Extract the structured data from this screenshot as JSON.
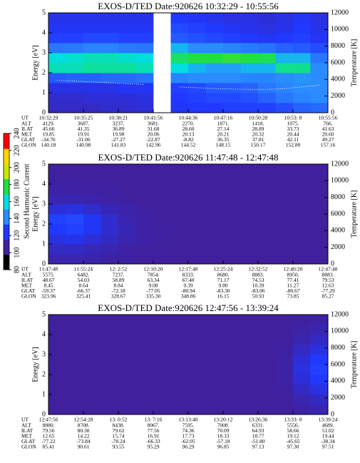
{
  "colorbar": {
    "label": "Second Harmonic Current",
    "zlim": [
      80,
      240
    ],
    "zticks": [
      80,
      100,
      120,
      140,
      160,
      180,
      200,
      220,
      240
    ],
    "colors": [
      "#000000",
      "#40209c",
      "#2038ff",
      "#2a8cff",
      "#00dede",
      "#20e040",
      "#c8e800",
      "#ffd800",
      "#ff0000"
    ]
  },
  "chart_data": [
    {
      "type": "heatmap",
      "title": "EXOS-D/TED    Date:920626  10:32:29 - 10:55:56",
      "y_label": "Energy [eV]",
      "y2_label": "Temperature [K]",
      "ylim": [
        0,
        5
      ],
      "yticks": [
        0,
        1,
        2,
        3,
        4,
        5
      ],
      "y2lim": [
        0,
        12000
      ],
      "y2ticks": [
        0,
        2000,
        4000,
        6000,
        8000,
        10000,
        12000
      ],
      "z": [
        [
          108,
          108,
          108,
          110,
          110,
          112,
          null,
          118,
          120,
          120,
          122,
          122,
          122,
          125,
          130,
          132
        ],
        [
          110,
          110,
          112,
          112,
          112,
          114,
          null,
          120,
          122,
          124,
          124,
          126,
          130,
          135,
          138,
          140
        ],
        [
          115,
          115,
          116,
          116,
          118,
          118,
          null,
          122,
          124,
          128,
          128,
          130,
          135,
          138,
          140,
          140
        ],
        [
          128,
          130,
          130,
          132,
          132,
          134,
          null,
          138,
          140,
          140,
          140,
          138,
          138,
          140,
          142,
          140
        ],
        [
          165,
          165,
          168,
          168,
          168,
          165,
          null,
          160,
          150,
          145,
          145,
          150,
          150,
          170,
          170,
          140
        ],
        [
          160,
          162,
          165,
          165,
          162,
          160,
          null,
          175,
          180,
          180,
          182,
          180,
          178,
          150,
          150,
          135
        ],
        [
          135,
          136,
          138,
          138,
          136,
          135,
          null,
          150,
          140,
          140,
          138,
          136,
          134,
          130,
          128,
          125
        ],
        [
          122,
          122,
          124,
          124,
          122,
          122,
          null,
          128,
          126,
          124,
          122,
          120,
          118,
          120,
          122,
          118
        ],
        [
          118,
          118,
          118,
          118,
          118,
          118,
          null,
          124,
          122,
          120,
          118,
          116,
          114,
          116,
          120,
          116
        ],
        [
          116,
          116,
          116,
          116,
          116,
          116,
          null,
          120,
          118,
          116,
          114,
          114,
          112,
          114,
          118,
          114
        ]
      ],
      "temperature": {
        "color": "#ffffff",
        "values": [
          3900,
          3800,
          3700,
          3600,
          3500,
          3400,
          null,
          3100,
          3000,
          2900,
          2850,
          2800,
          2800,
          2900,
          3100,
          3300
        ]
      },
      "table": {
        "row_labels": [
          "UT",
          "ALT",
          "ILAT",
          "MLT",
          "GLAT",
          "GLON"
        ],
        "rows": [
          [
            "10:32:29",
            "10:35:25",
            "10:38:21",
            "10:41:56",
            "10:44:36",
            "10:47:16",
            "10:50:28",
            "10:53: 8",
            "10:55:56"
          ],
          [
            "4129.",
            "3687.",
            "3237.",
            "3681.",
            "2270.",
            "1871.",
            "1418.",
            "1075.",
            "766."
          ],
          [
            "45.66",
            "41.35",
            "36.89",
            "31.68",
            "28.60",
            "27.14",
            "28.89",
            "33.73",
            "41.63"
          ],
          [
            "19.85",
            "19.91",
            "19.98",
            "20.06",
            "20.13",
            "20.21",
            "20.32",
            "20.44",
            "20.60"
          ],
          [
            "-34.76",
            "-31.06",
            "-27.27",
            "-22.87",
            "-8.82",
            "36.35",
            "37.81",
            "42.11",
            "49.27"
          ],
          [
            "140.18",
            "140.98",
            "141.83",
            "142.96",
            "144.52",
            "148.15",
            "150.17",
            "152.80",
            "157.16"
          ]
        ]
      }
    },
    {
      "type": "heatmap",
      "title": "EXOS-D/TED    Date:920626  11:47:48 - 12:47:48",
      "y_label": "Energy [eV]",
      "y2_label": "Temperature [K]",
      "ylim": [
        0,
        5
      ],
      "yticks": [
        0,
        1,
        2,
        3,
        4,
        5
      ],
      "y2lim": [
        0,
        12000
      ],
      "y2ticks": [
        0,
        2000,
        4000,
        6000,
        8000,
        10000,
        12000
      ],
      "z": [
        [
          104,
          104,
          103,
          102,
          101,
          100,
          100,
          100,
          100,
          100,
          100,
          100,
          100,
          100,
          100,
          100
        ],
        [
          108,
          108,
          106,
          104,
          102,
          101,
          100,
          100,
          100,
          100,
          100,
          100,
          100,
          100,
          100,
          100
        ],
        [
          114,
          116,
          112,
          108,
          104,
          102,
          101,
          100,
          100,
          100,
          100,
          100,
          100,
          100,
          100,
          100
        ],
        [
          120,
          122,
          118,
          110,
          105,
          102,
          101,
          100,
          100,
          100,
          100,
          100,
          100,
          100,
          100,
          100
        ],
        [
          122,
          124,
          118,
          110,
          104,
          102,
          100,
          100,
          100,
          100,
          100,
          100,
          100,
          100,
          100,
          100
        ],
        [
          112,
          114,
          110,
          106,
          103,
          101,
          100,
          100,
          100,
          100,
          100,
          100,
          100,
          100,
          100,
          100
        ],
        [
          104,
          104,
          103,
          102,
          101,
          100,
          100,
          100,
          100,
          100,
          100,
          100,
          100,
          100,
          100,
          100
        ],
        [
          102,
          102,
          101,
          101,
          100,
          100,
          100,
          100,
          100,
          100,
          100,
          100,
          100,
          100,
          100,
          100
        ],
        [
          101,
          101,
          100,
          100,
          100,
          100,
          100,
          100,
          100,
          100,
          100,
          100,
          100,
          100,
          100,
          100
        ],
        [
          100,
          100,
          100,
          100,
          100,
          100,
          100,
          100,
          100,
          100,
          100,
          100,
          100,
          100,
          100,
          100
        ]
      ],
      "table": {
        "row_labels": [
          "UT",
          "ALT",
          "ILAT",
          "MLT",
          "GLAT",
          "GLON"
        ],
        "rows": [
          [
            "11:47:48",
            "11:55:24",
            "12: 2:52",
            "12:10:20",
            "12:17:48",
            "12:25:24",
            "12:32:52",
            "12:40:20",
            "12:47:48"
          ],
          [
            "5575.",
            "6482.",
            "7237.",
            "7854.",
            "8333.",
            "8680.",
            "8883.",
            "8950.",
            "8883."
          ],
          [
            "48.67",
            "54.03",
            "58.89",
            "63.34",
            "67.40",
            "71.17",
            "74.53",
            "77.41",
            "79.53"
          ],
          [
            "8.45",
            "8.64",
            "8.84",
            "9.08",
            "9.39",
            "9.80",
            "10.39",
            "11.27",
            "12.63"
          ],
          [
            "-59.37",
            "-66.37",
            "-72.18",
            "-77.05",
            "-80.94",
            "-83.30",
            "-83.06",
            "-80.67",
            "-77.29"
          ],
          [
            "323.96",
            "325.41",
            "328.67",
            "335.30",
            "348.86",
            "16.15",
            "50.93",
            "73.85",
            "85.27"
          ]
        ]
      }
    },
    {
      "type": "heatmap",
      "title": "EXOS-D/TED    Date:920626  12:47:56 - 13:39:24",
      "y_label": "Energy [eV]",
      "y2_label": "Temperature [K]",
      "ylim": [
        0,
        5
      ],
      "yticks": [
        0,
        1,
        2,
        3,
        4,
        5
      ],
      "y2lim": [
        0,
        12000
      ],
      "y2ticks": [
        0,
        2000,
        4000,
        6000,
        8000,
        10000,
        12000
      ],
      "z": [
        [
          100,
          100,
          100,
          100,
          100,
          100,
          100,
          100,
          100,
          100,
          100,
          100,
          100,
          100,
          102,
          104
        ],
        [
          100,
          100,
          100,
          100,
          100,
          100,
          100,
          100,
          100,
          100,
          100,
          100,
          100,
          100,
          104,
          108
        ],
        [
          100,
          100,
          100,
          100,
          100,
          100,
          100,
          100,
          100,
          100,
          100,
          100,
          100,
          101,
          108,
          114
        ],
        [
          100,
          100,
          100,
          100,
          100,
          100,
          100,
          100,
          100,
          100,
          100,
          100,
          100,
          102,
          112,
          120
        ],
        [
          100,
          100,
          100,
          100,
          100,
          100,
          100,
          100,
          100,
          100,
          100,
          100,
          100,
          102,
          114,
          122
        ],
        [
          100,
          100,
          100,
          100,
          100,
          100,
          100,
          100,
          100,
          100,
          100,
          100,
          100,
          102,
          112,
          120
        ],
        [
          100,
          100,
          100,
          100,
          100,
          100,
          100,
          100,
          100,
          100,
          100,
          100,
          100,
          101,
          108,
          114
        ],
        [
          100,
          100,
          100,
          100,
          100,
          100,
          100,
          100,
          100,
          100,
          100,
          100,
          100,
          100,
          104,
          108
        ],
        [
          100,
          100,
          100,
          100,
          100,
          100,
          100,
          100,
          100,
          100,
          100,
          100,
          100,
          100,
          102,
          104
        ],
        [
          100,
          100,
          100,
          100,
          100,
          100,
          100,
          100,
          100,
          100,
          100,
          100,
          100,
          100,
          101,
          102
        ]
      ],
      "table": {
        "row_labels": [
          "UT",
          "ALT",
          "ILAT",
          "MLT",
          "GLAT",
          "GLON"
        ],
        "rows": [
          [
            "12:47:56",
            "12:54:28",
            "13: 0:52",
            "13: 7:16",
            "13:13:40",
            "13:20:12",
            "13:26:36",
            "13:33: 0",
            "13:39:24"
          ],
          [
            "8880.",
            "8708.",
            "8438.",
            "8067.",
            "7595.",
            "7008.",
            "6331.",
            "5556.",
            "4689."
          ],
          [
            "79.56",
            "80.30",
            "79.62",
            "77.56",
            "74.36",
            "70.09",
            "64.93",
            "58.66",
            "51.02"
          ],
          [
            "12.65",
            "14.22",
            "15.74",
            "16.91",
            "17.73",
            "18.33",
            "18.77",
            "19.12",
            "19.44"
          ],
          [
            "-77.22",
            "-73.84",
            "-70.24",
            "-66.33",
            "-62.05",
            "-57.18",
            "-51.80",
            "-45.65",
            "-38.34"
          ],
          [
            "85.41",
            "90.61",
            "93.55",
            "95.29",
            "96.29",
            "96.85",
            "97.13",
            "97.30",
            "97.51"
          ]
        ]
      }
    }
  ]
}
